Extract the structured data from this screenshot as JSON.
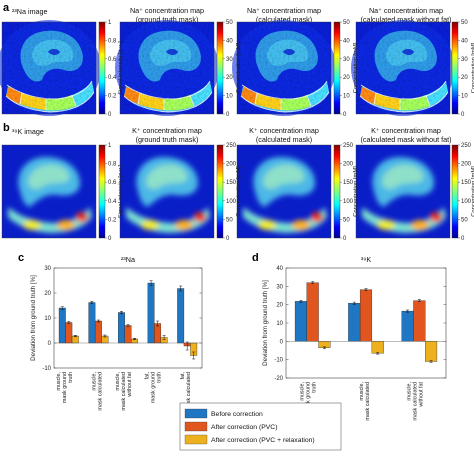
{
  "panel_a": {
    "label": "a",
    "titles": [
      {
        "line1": "²³Na image",
        "line2": ""
      },
      {
        "line1": "Na⁺ concentration map",
        "line2": "(ground truth mask)"
      },
      {
        "line1": "Na⁺ concentration map",
        "line2": "(calculated mask)"
      },
      {
        "line1": "Na⁺ concentration map",
        "line2": "(calculated mask without fat)"
      }
    ],
    "colorbars": [
      {
        "ticks": [
          "0",
          "0.2",
          "0.4",
          "0.6",
          "0.8",
          "1"
        ],
        "label": "Signal intensity [a.u.]"
      },
      {
        "ticks": [
          "0",
          "10",
          "20",
          "30",
          "40",
          "50"
        ],
        "label": "Concentration [mM]"
      },
      {
        "ticks": [
          "0",
          "10",
          "20",
          "30",
          "40",
          "50"
        ],
        "label": "Concentration [mM]"
      },
      {
        "ticks": [
          "0",
          "10",
          "20",
          "30",
          "40",
          "50"
        ],
        "label": "Concentration [mM]"
      }
    ]
  },
  "panel_b": {
    "label": "b",
    "titles": [
      {
        "line1": "³⁹K image",
        "line2": ""
      },
      {
        "line1": "K⁺ concentration map",
        "line2": "(ground truth mask)"
      },
      {
        "line1": "K⁺ concentration map",
        "line2": "(calculated mask)"
      },
      {
        "line1": "K⁺ concentration map",
        "line2": "(calculated mask without fat)"
      }
    ],
    "colorbars": [
      {
        "ticks": [
          "0",
          "0.2",
          "0.4",
          "0.6",
          "0.8",
          "1"
        ],
        "label": "Signal intensity [a.u.]"
      },
      {
        "ticks": [
          "0",
          "50",
          "100",
          "150",
          "200",
          "250"
        ],
        "label": "Concentration [mM]"
      },
      {
        "ticks": [
          "0",
          "50",
          "100",
          "150",
          "200",
          "250"
        ],
        "label": "Concentration [mM]"
      },
      {
        "ticks": [
          "0",
          "50",
          "100",
          "150",
          "200",
          "250"
        ],
        "label": "Concentration [mM]"
      }
    ]
  },
  "chart_data": [
    {
      "panel": "c",
      "type": "bar",
      "title": "²³Na",
      "ylabel": "Deviation from ground truth [%]",
      "ylim": [
        -10,
        30
      ],
      "yticks": [
        -10,
        0,
        10,
        20,
        30
      ],
      "categories": [
        "muscle, mask ground truth",
        "muscle, mask calculated",
        "muscle, mask calculated without fat",
        "fat, mask ground truth",
        "fat, mask calculated"
      ],
      "series": [
        {
          "name": "Before correction",
          "color": "#1f77c4",
          "values": [
            14,
            16.2,
            12.2,
            24,
            21.8
          ],
          "errors": [
            0.5,
            0.5,
            0.5,
            0.9,
            1.0
          ]
        },
        {
          "name": "After correction (PVC)",
          "color": "#e1561f",
          "values": [
            8.2,
            8.8,
            7.0,
            7.8,
            -1.2
          ],
          "errors": [
            0.4,
            0.4,
            0.4,
            1.0,
            1.6
          ]
        },
        {
          "name": "After correction (PVC + relaxation)",
          "color": "#edb120",
          "values": [
            2.8,
            2.8,
            1.6,
            2.2,
            -5.0
          ],
          "errors": [
            0.3,
            0.4,
            0.3,
            0.8,
            1.4
          ]
        }
      ]
    },
    {
      "panel": "d",
      "type": "bar",
      "title": "³⁹K",
      "ylabel": "Deviation from ground truth [%]",
      "ylim": [
        -20,
        40
      ],
      "yticks": [
        -20,
        -10,
        0,
        10,
        20,
        30,
        40
      ],
      "categories": [
        "muscle, mask ground truth",
        "muscle, mask calculated",
        "muscle, mask calculated without fat"
      ],
      "series": [
        {
          "name": "Before correction",
          "color": "#1f77c4",
          "values": [
            21.8,
            20.8,
            16.5
          ],
          "errors": [
            0.6,
            0.6,
            0.6
          ]
        },
        {
          "name": "After correction (PVC)",
          "color": "#e1561f",
          "values": [
            32,
            28.2,
            22.2
          ],
          "errors": [
            0.6,
            0.6,
            0.6
          ]
        },
        {
          "name": "After correction (PVC + relaxation)",
          "color": "#edb120",
          "values": [
            -3.5,
            -6.5,
            -11
          ],
          "errors": [
            0.5,
            0.5,
            0.5
          ]
        }
      ]
    }
  ],
  "legend": [
    "Before correction",
    "After correction (PVC)",
    "After correction (PVC + relaxation)"
  ]
}
